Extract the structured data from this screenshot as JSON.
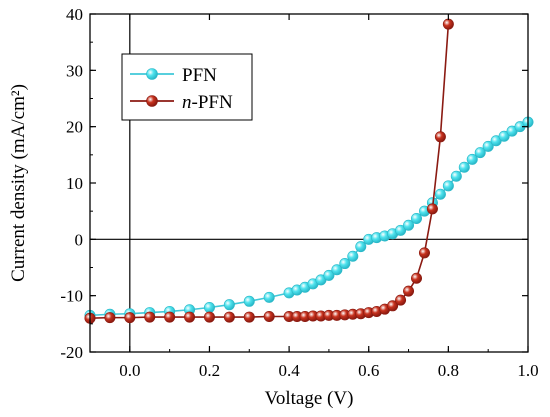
{
  "chart_data": {
    "type": "line",
    "xlabel": "Voltage (V)",
    "ylabel": "Current density (mA/cm²)",
    "xlim": [
      -0.1,
      1.0
    ],
    "ylim": [
      -20,
      40
    ],
    "xticks": [
      0.0,
      0.2,
      0.4,
      0.6,
      0.8,
      1.0
    ],
    "xtick_labels": [
      "0.0",
      "0.2",
      "0.4",
      "0.6",
      "0.8",
      "1.0"
    ],
    "yticks": [
      -20,
      -10,
      0,
      10,
      20,
      30,
      40
    ],
    "ytick_labels": [
      "-20",
      "-10",
      "0",
      "10",
      "20",
      "30",
      "40"
    ],
    "reference_lines": {
      "x": 0,
      "y": 0
    },
    "legend_placement": "top-left",
    "series": [
      {
        "name": "PFN",
        "legend_parts": [
          {
            "text": "PFN",
            "italic": false
          }
        ],
        "color": "#4fe3ee",
        "marker_edge": "#2ab8c8",
        "line_color": "#3fc8d8",
        "x": [
          -0.1,
          -0.05,
          0.0,
          0.05,
          0.1,
          0.15,
          0.2,
          0.25,
          0.3,
          0.35,
          0.4,
          0.42,
          0.44,
          0.46,
          0.48,
          0.5,
          0.52,
          0.54,
          0.56,
          0.58,
          0.6,
          0.62,
          0.64,
          0.66,
          0.68,
          0.7,
          0.72,
          0.74,
          0.76,
          0.78,
          0.8,
          0.82,
          0.84,
          0.86,
          0.88,
          0.9,
          0.92,
          0.94,
          0.96,
          0.98,
          1.0
        ],
        "y": [
          -13.5,
          -13.3,
          -13.2,
          -13.0,
          -12.8,
          -12.5,
          -12.1,
          -11.6,
          -11.0,
          -10.3,
          -9.5,
          -9.0,
          -8.5,
          -7.9,
          -7.2,
          -6.4,
          -5.4,
          -4.3,
          -3.0,
          -1.3,
          0.0,
          0.3,
          0.6,
          1.0,
          1.6,
          2.5,
          3.7,
          5.0,
          6.5,
          8.0,
          9.5,
          11.2,
          12.8,
          14.2,
          15.4,
          16.5,
          17.5,
          18.3,
          19.2,
          20.0,
          20.8
        ]
      },
      {
        "name": "n-PFN",
        "legend_parts": [
          {
            "text": "n",
            "italic": true
          },
          {
            "text": "-PFN",
            "italic": false
          }
        ],
        "color": "#c8321e",
        "marker_edge": "#8a1a10",
        "line_color": "#8b1a12",
        "x": [
          -0.1,
          -0.05,
          0.0,
          0.05,
          0.1,
          0.15,
          0.2,
          0.25,
          0.3,
          0.35,
          0.4,
          0.42,
          0.44,
          0.46,
          0.48,
          0.5,
          0.52,
          0.54,
          0.56,
          0.58,
          0.6,
          0.62,
          0.64,
          0.66,
          0.68,
          0.7,
          0.72,
          0.74,
          0.76,
          0.78,
          0.8,
          0.82
        ],
        "y": [
          -14.0,
          -13.9,
          -13.9,
          -13.8,
          -13.8,
          -13.8,
          -13.8,
          -13.8,
          -13.8,
          -13.7,
          -13.7,
          -13.7,
          -13.7,
          -13.6,
          -13.6,
          -13.5,
          -13.5,
          -13.4,
          -13.3,
          -13.2,
          -13.0,
          -12.8,
          -12.4,
          -11.8,
          -10.8,
          -9.2,
          -6.9,
          -2.4,
          5.4,
          18.2,
          38.2,
          null
        ]
      }
    ]
  }
}
